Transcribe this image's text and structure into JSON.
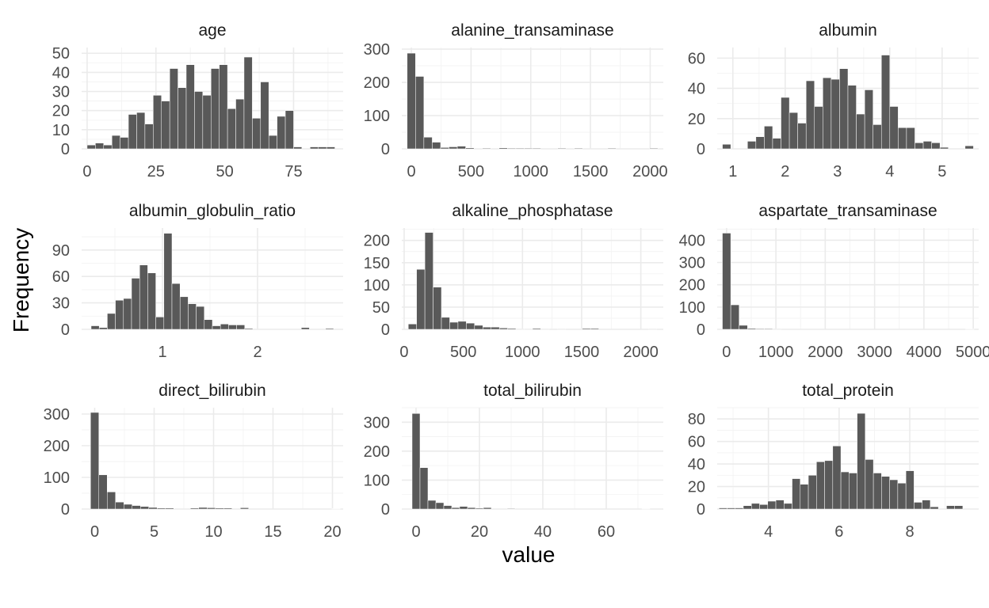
{
  "xlabel": "value",
  "ylabel": "Frequency",
  "chart_data": [
    {
      "type": "bar",
      "title": "age",
      "bin_edges": [
        0,
        3,
        6,
        9,
        12,
        15,
        18,
        21,
        24,
        27,
        30,
        33,
        36,
        39,
        42,
        45,
        48,
        51,
        54,
        57,
        60,
        63,
        66,
        69,
        72,
        75,
        78,
        81,
        84,
        87,
        90
      ],
      "counts": [
        2,
        3,
        2,
        7,
        6,
        18,
        19,
        13,
        28,
        25,
        42,
        32,
        44,
        30,
        28,
        42,
        44,
        21,
        26,
        48,
        16,
        35,
        7,
        17,
        20,
        1,
        0,
        1,
        1,
        1
      ],
      "xlim": [
        -2,
        93
      ],
      "ylim": [
        0,
        53
      ],
      "xticks": [
        0,
        25,
        50,
        75
      ],
      "xtick_labels": [
        "0",
        "25",
        "50",
        "75"
      ],
      "yticks": [
        0,
        10,
        20,
        30,
        40,
        50
      ],
      "ytick_labels": [
        "0",
        "10",
        "20",
        "30",
        "40",
        "50"
      ]
    },
    {
      "type": "bar",
      "title": "alanine_transaminase",
      "bin_edges": [
        -35,
        35,
        105,
        175,
        245,
        315,
        385,
        455,
        525,
        595,
        665,
        735,
        805,
        875,
        945,
        1015,
        1085,
        1155,
        1225,
        1295,
        1365,
        1435,
        1505,
        1575,
        1645,
        1715,
        1785,
        1855,
        1925,
        1995,
        2065
      ],
      "counts": [
        288,
        218,
        35,
        20,
        4,
        6,
        8,
        3,
        0,
        2,
        0,
        3,
        2,
        2,
        2,
        2,
        0,
        0,
        2,
        0,
        2,
        0,
        0,
        0,
        2,
        0,
        0,
        0,
        0,
        2
      ],
      "xlim": [
        -80,
        2110
      ],
      "ylim": [
        0,
        305
      ],
      "xticks": [
        0,
        500,
        1000,
        1500,
        2000
      ],
      "xtick_labels": [
        "0",
        "500",
        "1000",
        "1500",
        "2000"
      ],
      "yticks": [
        0,
        100,
        200,
        300
      ],
      "ytick_labels": [
        "0",
        "100",
        "200",
        "300"
      ]
    },
    {
      "type": "bar",
      "title": "albumin",
      "bin_edges": [
        0.8,
        0.96,
        1.12,
        1.28,
        1.44,
        1.6,
        1.76,
        1.92,
        2.08,
        2.24,
        2.4,
        2.56,
        2.72,
        2.88,
        3.04,
        3.2,
        3.36,
        3.52,
        3.68,
        3.84,
        4.0,
        4.16,
        4.32,
        4.48,
        4.64,
        4.8,
        4.96,
        5.12,
        5.28,
        5.44,
        5.6
      ],
      "counts": [
        3,
        0,
        0,
        5,
        8,
        15,
        7,
        34,
        24,
        17,
        45,
        28,
        47,
        46,
        53,
        42,
        23,
        39,
        16,
        62,
        28,
        14,
        14,
        4,
        5,
        4,
        1,
        0,
        0,
        2
      ],
      "xlim": [
        0.7,
        5.7
      ],
      "ylim": [
        0,
        67
      ],
      "xticks": [
        1,
        2,
        3,
        4,
        5
      ],
      "xtick_labels": [
        "1",
        "2",
        "3",
        "4",
        "5"
      ],
      "yticks": [
        0,
        20,
        40,
        60
      ],
      "ytick_labels": [
        "0",
        "20",
        "40",
        "60"
      ]
    },
    {
      "type": "bar",
      "title": "albumin_globulin_ratio",
      "bin_edges": [
        0.25,
        0.335,
        0.42,
        0.505,
        0.59,
        0.675,
        0.76,
        0.845,
        0.93,
        1.015,
        1.1,
        1.185,
        1.27,
        1.355,
        1.44,
        1.525,
        1.61,
        1.695,
        1.78,
        1.865,
        1.95,
        2.035,
        2.12,
        2.205,
        2.29,
        2.375,
        2.46,
        2.545,
        2.63,
        2.715,
        2.8
      ],
      "counts": [
        4,
        2,
        18,
        33,
        35,
        58,
        73,
        64,
        14,
        109,
        52,
        37,
        29,
        26,
        11,
        4,
        6,
        5,
        5,
        1,
        0,
        0,
        0,
        0,
        0,
        0,
        2,
        0,
        0,
        1
      ],
      "xlim": [
        0.15,
        2.9
      ],
      "ylim": [
        0,
        115
      ],
      "xticks": [
        1,
        2
      ],
      "xtick_labels": [
        "1",
        "2"
      ],
      "yticks": [
        0,
        30,
        60,
        90
      ],
      "ytick_labels": [
        "0",
        "30",
        "60",
        "90"
      ]
    },
    {
      "type": "bar",
      "title": "alkaline_phosphatase",
      "bin_edges": [
        35,
        105,
        175,
        245,
        315,
        385,
        455,
        525,
        595,
        665,
        735,
        805,
        875,
        945,
        1015,
        1085,
        1155,
        1225,
        1295,
        1365,
        1435,
        1505,
        1575,
        1645,
        1715,
        1785,
        1855,
        1925,
        1995,
        2065,
        2135
      ],
      "counts": [
        12,
        135,
        218,
        95,
        27,
        16,
        18,
        14,
        9,
        5,
        5,
        3,
        2,
        1,
        1,
        2,
        1,
        0,
        1,
        0,
        0,
        2,
        2,
        0,
        0,
        0,
        0,
        0,
        0,
        1
      ],
      "xlim": [
        -20,
        2190
      ],
      "ylim": [
        0,
        228
      ],
      "xticks": [
        0,
        500,
        1000,
        1500,
        2000
      ],
      "xtick_labels": [
        "0",
        "500",
        "1000",
        "1500",
        "2000"
      ],
      "yticks": [
        0,
        50,
        100,
        150,
        200
      ],
      "ytick_labels": [
        "0",
        "50",
        "100",
        "150",
        "200"
      ]
    },
    {
      "type": "bar",
      "title": "aspartate_transaminase",
      "bin_edges": [
        -85,
        85,
        255,
        425,
        595,
        765,
        935,
        1105,
        1275,
        1445,
        1615,
        1785,
        1955,
        2125,
        2295,
        2465,
        2635,
        2805,
        2975,
        3145,
        3315,
        3485,
        3655,
        3825,
        3995,
        4165,
        4335,
        4505,
        4675,
        4845,
        5015
      ],
      "counts": [
        432,
        110,
        18,
        4,
        3,
        3,
        2,
        0,
        0,
        0,
        0,
        0,
        0,
        0,
        0,
        0,
        0,
        0,
        0,
        0,
        0,
        0,
        0,
        0,
        0,
        0,
        0,
        0,
        0,
        1
      ],
      "xlim": [
        -190,
        5110
      ],
      "ylim": [
        0,
        455
      ],
      "xticks": [
        0,
        1000,
        2000,
        3000,
        4000,
        5000
      ],
      "xtick_labels": [
        "0",
        "1000",
        "2000",
        "3000",
        "4000",
        "5000"
      ],
      "yticks": [
        0,
        100,
        200,
        300,
        400
      ],
      "ytick_labels": [
        "0",
        "100",
        "200",
        "300",
        "400"
      ]
    },
    {
      "type": "bar",
      "title": "direct_bilirubin",
      "bin_edges": [
        -0.35,
        0.35,
        1.05,
        1.75,
        2.45,
        3.15,
        3.85,
        4.55,
        5.25,
        5.95,
        6.65,
        7.35,
        8.05,
        8.75,
        9.45,
        10.15,
        10.85,
        11.55,
        12.25,
        12.95,
        13.65,
        14.35,
        15.05,
        15.75,
        16.45,
        17.15,
        17.85,
        18.55,
        19.25,
        19.95,
        20.65
      ],
      "counts": [
        305,
        108,
        54,
        22,
        15,
        11,
        8,
        5,
        3,
        3,
        0,
        0,
        3,
        5,
        4,
        3,
        3,
        0,
        4,
        0,
        0,
        0,
        0,
        0,
        0,
        0,
        0,
        0,
        0,
        1
      ],
      "xlim": [
        -1.1,
        20.9
      ],
      "ylim": [
        0,
        320
      ],
      "xticks": [
        0,
        5,
        10,
        15,
        20
      ],
      "xtick_labels": [
        "0",
        "5",
        "10",
        "15",
        "20"
      ],
      "yticks": [
        0,
        100,
        200,
        300
      ],
      "ytick_labels": [
        "0",
        "100",
        "200",
        "300"
      ]
    },
    {
      "type": "bar",
      "title": "total_bilirubin",
      "bin_edges": [
        -1.25,
        1.25,
        3.75,
        6.25,
        8.75,
        11.25,
        13.75,
        16.25,
        18.75,
        21.25,
        23.75,
        26.25,
        28.75,
        31.25,
        33.75,
        36.25,
        38.75,
        41.25,
        43.75,
        46.25,
        48.75,
        51.25,
        53.75,
        56.25,
        58.75,
        61.25,
        63.75,
        66.25,
        68.75,
        71.25,
        73.75
      ],
      "counts": [
        330,
        143,
        30,
        22,
        12,
        5,
        9,
        5,
        3,
        5,
        0,
        0,
        2,
        0,
        0,
        0,
        0,
        0,
        0,
        0,
        0,
        0,
        0,
        0,
        0,
        0,
        0,
        0,
        0,
        1
      ],
      "xlim": [
        -4.5,
        78
      ],
      "ylim": [
        0,
        350
      ],
      "xticks": [
        0,
        20,
        40,
        60
      ],
      "xtick_labels": [
        "0",
        "20",
        "40",
        "60"
      ],
      "yticks": [
        0,
        100,
        200,
        300
      ],
      "ytick_labels": [
        "0",
        "100",
        "200",
        "300"
      ]
    },
    {
      "type": "bar",
      "title": "total_protein",
      "bin_edges": [
        2.6,
        2.83,
        3.06,
        3.29,
        3.52,
        3.75,
        3.98,
        4.21,
        4.44,
        4.67,
        4.9,
        5.13,
        5.36,
        5.59,
        5.82,
        6.05,
        6.28,
        6.51,
        6.74,
        6.97,
        7.2,
        7.43,
        7.66,
        7.89,
        8.12,
        8.35,
        8.58,
        8.81,
        9.04,
        9.27,
        9.5
      ],
      "counts": [
        1,
        1,
        1,
        3,
        5,
        4,
        7,
        8,
        5,
        27,
        22,
        30,
        42,
        43,
        56,
        33,
        32,
        85,
        44,
        32,
        29,
        26,
        23,
        34,
        6,
        8,
        2,
        0,
        3,
        3
      ],
      "xlim": [
        2.55,
        9.95
      ],
      "ylim": [
        0,
        90
      ],
      "xticks": [
        4,
        6,
        8
      ],
      "xtick_labels": [
        "4",
        "6",
        "8"
      ],
      "yticks": [
        0,
        20,
        40,
        60,
        80
      ],
      "ytick_labels": [
        "0",
        "20",
        "40",
        "60",
        "80"
      ]
    }
  ]
}
